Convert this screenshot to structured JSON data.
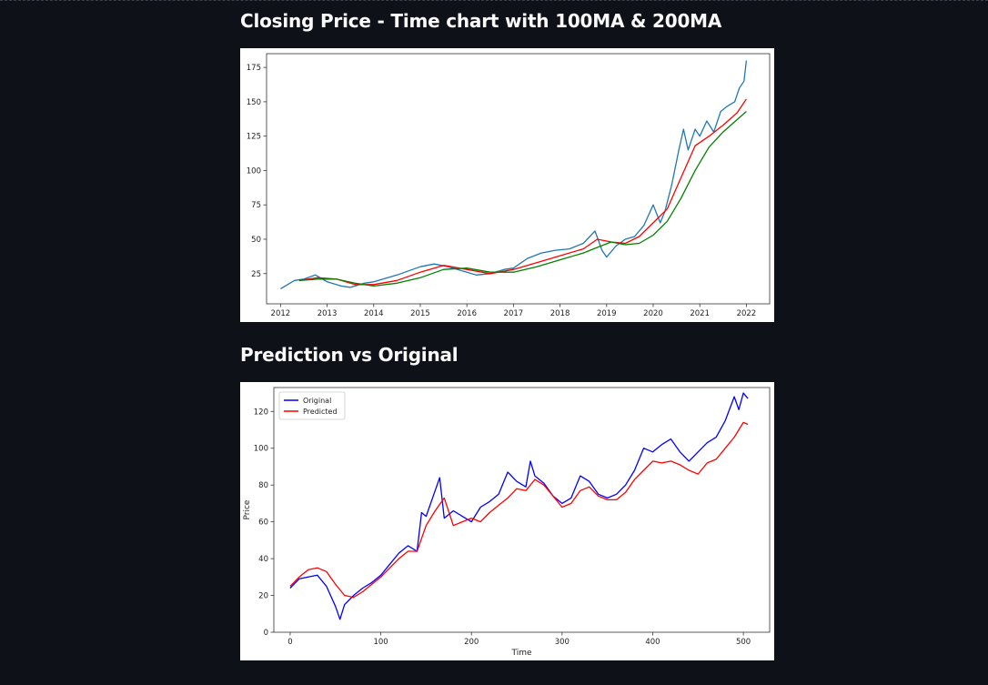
{
  "sections": {
    "closing_title": "Closing Price - Time chart with 100MA & 200MA",
    "prediction_title": "Prediction vs Original"
  },
  "colors": {
    "background": "#0e1117",
    "close": "#1f77b4",
    "ma100": "#ff0000",
    "ma200": "#008000",
    "original": "#0000ff",
    "predicted": "#ff0000"
  },
  "chart_data": [
    {
      "type": "line",
      "title": "",
      "xlabel": "",
      "ylabel": "",
      "xlim": [
        2011.7,
        2022.5
      ],
      "ylim": [
        3,
        185
      ],
      "xticks": [
        2012,
        2013,
        2014,
        2015,
        2016,
        2017,
        2018,
        2019,
        2020,
        2021,
        2022
      ],
      "yticks": [
        25,
        50,
        75,
        100,
        125,
        150,
        175
      ],
      "grid": false,
      "legend": "none",
      "series": [
        {
          "key": "close",
          "x": [
            2012.0,
            2012.3,
            2012.5,
            2012.75,
            2013.0,
            2013.3,
            2013.5,
            2013.8,
            2014.0,
            2014.5,
            2015.0,
            2015.3,
            2015.6,
            2015.9,
            2016.2,
            2016.5,
            2016.8,
            2017.0,
            2017.3,
            2017.6,
            2017.9,
            2018.2,
            2018.5,
            2018.75,
            2018.9,
            2019.0,
            2019.2,
            2019.4,
            2019.6,
            2019.8,
            2020.0,
            2020.15,
            2020.25,
            2020.4,
            2020.55,
            2020.65,
            2020.75,
            2020.9,
            2021.0,
            2021.15,
            2021.3,
            2021.45,
            2021.6,
            2021.75,
            2021.85,
            2021.95,
            2022.0
          ],
          "y": [
            14,
            20,
            21,
            24,
            19,
            16,
            15,
            18,
            19,
            24,
            30,
            32,
            30,
            27,
            24,
            25,
            28,
            29,
            36,
            40,
            42,
            43,
            47,
            56,
            42,
            37,
            45,
            50,
            52,
            60,
            75,
            62,
            70,
            90,
            115,
            130,
            115,
            130,
            125,
            136,
            128,
            143,
            147,
            150,
            160,
            165,
            180
          ]
        },
        {
          "key": "ma100",
          "x": [
            2012.4,
            2012.8,
            2013.2,
            2013.6,
            2014.0,
            2014.5,
            2015.0,
            2015.5,
            2016.0,
            2016.5,
            2017.0,
            2017.5,
            2018.0,
            2018.5,
            2018.8,
            2019.1,
            2019.4,
            2019.7,
            2020.0,
            2020.3,
            2020.6,
            2020.9,
            2021.2,
            2021.5,
            2021.8,
            2022.0
          ],
          "y": [
            20,
            22,
            21,
            17,
            17,
            20,
            26,
            31,
            28,
            25,
            28,
            33,
            38,
            43,
            50,
            48,
            47,
            52,
            62,
            72,
            95,
            118,
            125,
            133,
            142,
            152
          ]
        },
        {
          "key": "ma200",
          "x": [
            2012.4,
            2012.8,
            2013.2,
            2013.6,
            2014.0,
            2014.5,
            2015.0,
            2015.5,
            2016.0,
            2016.5,
            2017.0,
            2017.5,
            2018.0,
            2018.5,
            2018.8,
            2019.1,
            2019.4,
            2019.7,
            2020.0,
            2020.3,
            2020.6,
            2020.9,
            2021.2,
            2021.5,
            2021.8,
            2022.0
          ],
          "y": [
            20,
            21,
            21,
            18,
            16,
            18,
            22,
            28,
            29,
            26,
            26,
            30,
            35,
            40,
            44,
            48,
            46,
            47,
            53,
            63,
            80,
            100,
            117,
            128,
            137,
            143
          ]
        }
      ]
    },
    {
      "type": "line",
      "title": "",
      "xlabel": "Time",
      "ylabel": "Price",
      "xlim": [
        -18,
        529
      ],
      "ylim": [
        0,
        133
      ],
      "xticks": [
        0,
        100,
        200,
        300,
        400,
        500
      ],
      "yticks": [
        0,
        20,
        40,
        60,
        80,
        100,
        120
      ],
      "grid": false,
      "legend": "top-left",
      "series": [
        {
          "key": "original",
          "name": "Original",
          "x": [
            0,
            10,
            20,
            30,
            40,
            50,
            55,
            60,
            70,
            80,
            90,
            100,
            110,
            120,
            130,
            140,
            145,
            150,
            160,
            165,
            170,
            180,
            190,
            200,
            210,
            220,
            230,
            240,
            250,
            260,
            265,
            270,
            280,
            290,
            300,
            310,
            320,
            330,
            340,
            350,
            360,
            370,
            380,
            390,
            400,
            410,
            420,
            430,
            440,
            450,
            460,
            470,
            480,
            490,
            495,
            500,
            505
          ],
          "y": [
            24,
            29,
            30,
            31,
            25,
            14,
            7,
            15,
            20,
            24,
            27,
            31,
            37,
            43,
            47,
            44,
            65,
            63,
            77,
            84,
            62,
            66,
            63,
            60,
            68,
            71,
            75,
            87,
            82,
            79,
            93,
            85,
            81,
            74,
            70,
            73,
            85,
            82,
            75,
            73,
            75,
            80,
            88,
            100,
            98,
            102,
            105,
            98,
            93,
            98,
            103,
            106,
            115,
            128,
            121,
            130,
            127
          ]
        },
        {
          "key": "predicted",
          "name": "Predicted",
          "x": [
            0,
            10,
            20,
            30,
            40,
            50,
            60,
            70,
            80,
            90,
            100,
            110,
            120,
            130,
            140,
            150,
            160,
            170,
            180,
            190,
            200,
            210,
            220,
            230,
            240,
            250,
            260,
            270,
            280,
            290,
            300,
            310,
            320,
            330,
            340,
            350,
            360,
            370,
            380,
            390,
            400,
            410,
            420,
            430,
            440,
            450,
            460,
            470,
            480,
            490,
            500,
            505
          ],
          "y": [
            25,
            30,
            34,
            35,
            33,
            26,
            20,
            19,
            22,
            26,
            30,
            35,
            40,
            44,
            44,
            58,
            66,
            73,
            58,
            60,
            62,
            60,
            65,
            69,
            73,
            78,
            77,
            83,
            80,
            74,
            68,
            70,
            77,
            79,
            74,
            72,
            72,
            76,
            83,
            88,
            93,
            92,
            93,
            91,
            88,
            86,
            92,
            94,
            100,
            106,
            114,
            113
          ]
        }
      ]
    }
  ]
}
